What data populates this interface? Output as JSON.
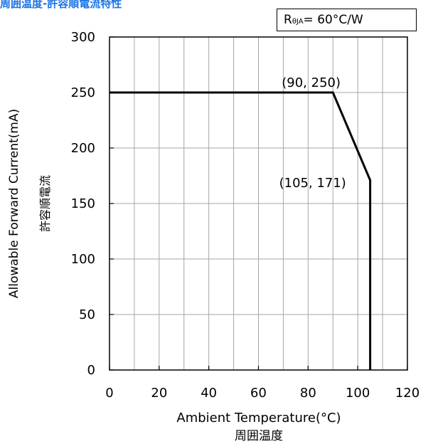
{
  "header": {
    "title": "周囲温度-許容順電流特性"
  },
  "legend": {
    "symbol": "R",
    "subscript": "θJA",
    "value": " = 60°C/W"
  },
  "colors": {
    "title": "#1a73e8",
    "line": "#000000",
    "grid": "#a6a6a6"
  },
  "chart_data": {
    "type": "line",
    "title": "",
    "xlabel": "Ambient Temperature(°C)",
    "xlabel_jp": "周囲温度",
    "ylabel": "Allowable Forward Current(mA)",
    "ylabel_jp": "許容順電流",
    "xlim": [
      0,
      120
    ],
    "ylim": [
      0,
      300
    ],
    "x_ticks": [
      0,
      20,
      40,
      60,
      80,
      100,
      120
    ],
    "y_ticks": [
      0,
      50,
      100,
      150,
      200,
      250,
      300
    ],
    "grid": true,
    "series": [
      {
        "values": [
          [
            0,
            250
          ],
          [
            90,
            250
          ],
          [
            105,
            171
          ],
          [
            105,
            0
          ]
        ]
      }
    ],
    "annotations": [
      {
        "text": "(90, 250)",
        "x": 90,
        "y": 250
      },
      {
        "text": "(105, 171)",
        "x": 105,
        "y": 171
      }
    ]
  }
}
